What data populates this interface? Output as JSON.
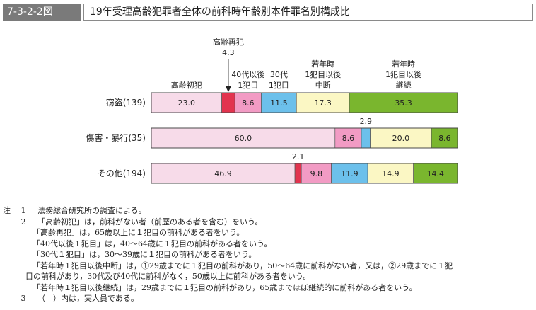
{
  "figure": {
    "id": "7-3-2-2図",
    "title": "19年受理高齢犯罪者全体の前科時年齢別本件罪名別構成比"
  },
  "chart_data": {
    "type": "bar",
    "orientation": "horizontal",
    "stacked": true,
    "normalized_percent": true,
    "categories": [
      "窃盗(139)",
      "傷害・暴行(35)",
      "その他(194)"
    ],
    "series": [
      {
        "name": "高齢初犯",
        "color": "#f7dbe9",
        "values": [
          23.0,
          60.0,
          46.9
        ]
      },
      {
        "name": "高齢再犯",
        "color": "#e2334e",
        "values": [
          4.3,
          0.0,
          2.1
        ]
      },
      {
        "name": "40代以後1犯目",
        "color": "#f29bc4",
        "values": [
          8.6,
          8.6,
          9.8
        ]
      },
      {
        "name": "30代1犯目",
        "color": "#6cc0eb",
        "values": [
          11.5,
          2.9,
          11.9
        ]
      },
      {
        "name": "若年時1犯目以後中断",
        "color": "#fbf7c4",
        "values": [
          17.3,
          20.0,
          14.9
        ]
      },
      {
        "name": "若年時1犯目以後継続",
        "color": "#7ab62e",
        "values": [
          35.3,
          8.6,
          14.4
        ]
      }
    ],
    "legend_labels": [
      [
        "高齢初犯"
      ],
      [
        "高齢再犯",
        "4.3"
      ],
      [
        "40代以後",
        "1犯目"
      ],
      [
        "30代",
        "1犯目"
      ],
      [
        "若年時",
        "1犯目以後",
        "中断"
      ],
      [
        "若年時",
        "1犯目以後",
        "継続"
      ]
    ],
    "value_labels": [
      [
        "23.0",
        "",
        "8.6",
        "11.5",
        "17.3",
        "35.3"
      ],
      [
        "60.0",
        "",
        "8.6",
        "2.9",
        "20.0",
        "8.6"
      ],
      [
        "46.9",
        "2.1",
        "9.8",
        "11.9",
        "14.9",
        "14.4"
      ]
    ],
    "xlim": [
      0,
      100
    ],
    "grid": false
  },
  "notes": {
    "label": "注",
    "items": [
      {
        "num": "1",
        "text": "法務総合研究所の調査による。"
      },
      {
        "num": "2",
        "text": "「高齢初犯」は，前科がない者（前歴のある者を含む）をいう。"
      }
    ],
    "sub_lines": [
      "「高齢再犯」は，65歳以上に１犯目の前科がある者をいう。",
      "「40代以後１犯目」は，40～64歳に１犯目の前科がある者をいう。",
      "「30代１犯目」は，30～39歳に１犯目の前科がある者をいう。",
      "「若年時１犯目以後中断」は，①29歳までに１犯目の前科があり，50～64歳に前科がない者，又は，②29歳までに１犯",
      "目の前科があり，30代及び40代に前科がなく，50歳以上に前科がある者をいう。",
      "「若年時１犯目以後継続」は，29歳までに１犯目の前科があり，65歳までほぼ継続的に前科がある者をいう。"
    ],
    "item3": {
      "num": "3",
      "text": "（　）内は，実人員である。"
    }
  }
}
